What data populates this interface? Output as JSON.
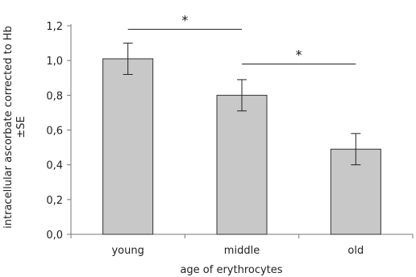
{
  "chart_data": {
    "type": "bar",
    "categories": [
      "young",
      "middle",
      "old"
    ],
    "values": [
      1.01,
      0.8,
      0.49
    ],
    "errors": [
      0.09,
      0.09,
      0.09
    ],
    "xlabel": "age of erythrocytes",
    "ylabel_lines": [
      "intracellular ascorbate corrected to Hb",
      "±SE"
    ],
    "ylim": [
      0,
      1.2
    ],
    "yticks": [
      0,
      0.2,
      0.4,
      0.6,
      0.8,
      1.0,
      1.2
    ],
    "ytick_labels": [
      "0,0",
      "0,2",
      "0,4",
      "0,6",
      "0,8",
      "1,0",
      "1,2"
    ],
    "bar_color": "#c8c8c8",
    "grid": false,
    "significance": [
      {
        "from": 0,
        "to": 1,
        "label": "*",
        "y": 1.18
      },
      {
        "from": 1,
        "to": 2,
        "label": "*",
        "y": 0.98
      }
    ]
  }
}
